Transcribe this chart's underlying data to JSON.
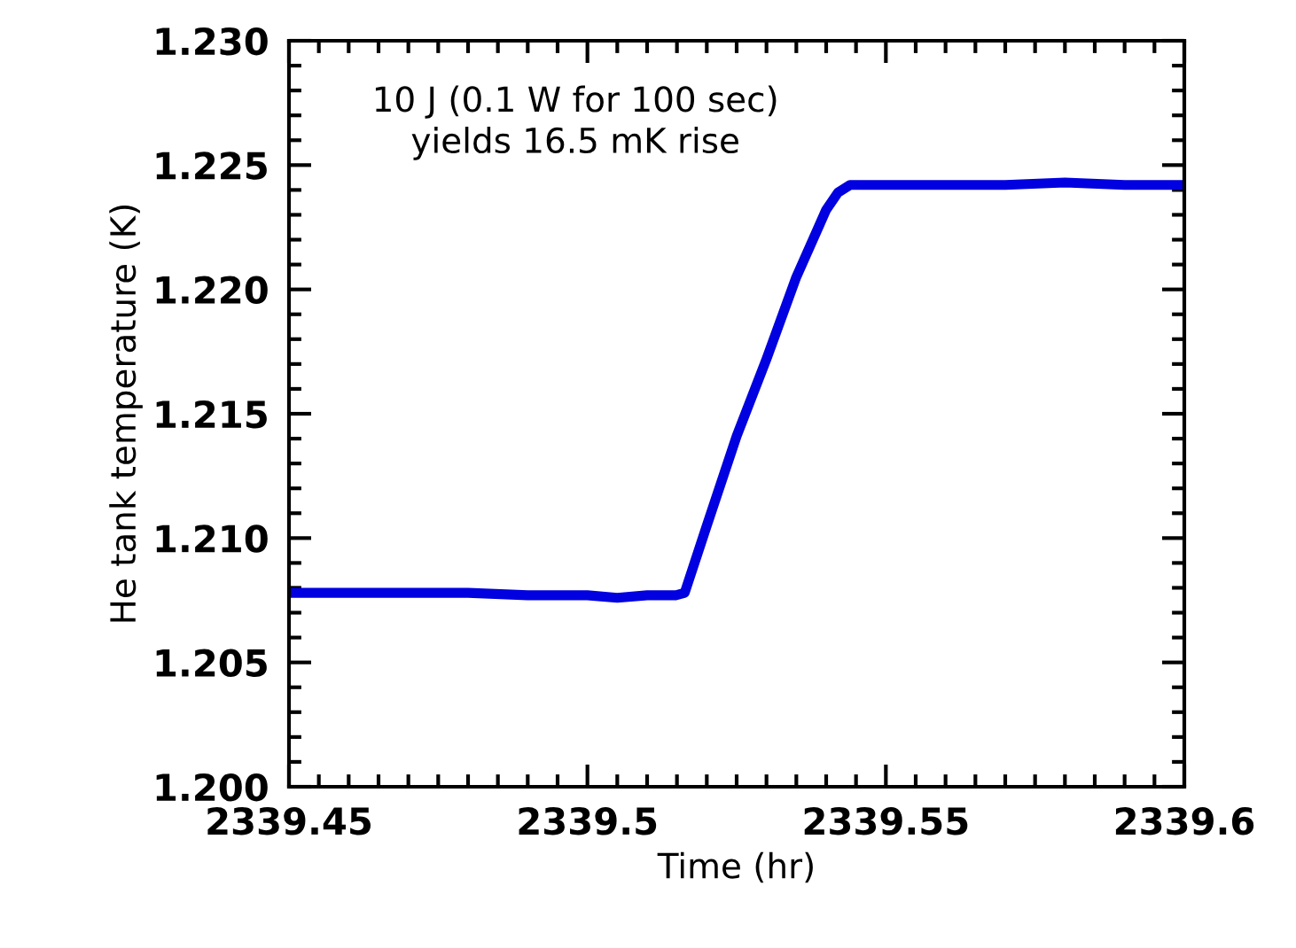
{
  "chart_data": {
    "type": "line",
    "xlabel": "Time (hr)",
    "ylabel": "He tank temperature (K)",
    "annotations": [
      "10 J (0.1 W for 100 sec)\nyields 16.5 mK rise"
    ],
    "series": [
      {
        "color": "#0000e0",
        "x": [
          2339.45,
          2339.46,
          2339.47,
          2339.48,
          2339.49,
          2339.5,
          2339.505,
          2339.51,
          2339.5148,
          2339.5163,
          2339.52,
          2339.525,
          2339.53,
          2339.535,
          2339.54,
          2339.542,
          2339.544,
          2339.55,
          2339.56,
          2339.57,
          2339.58,
          2339.59,
          2339.6
        ],
        "values": [
          1.2078,
          1.2078,
          1.2078,
          1.2078,
          1.2077,
          1.2077,
          1.2076,
          1.2077,
          1.2077,
          1.2078,
          1.2105,
          1.2141,
          1.2172,
          1.2205,
          1.2232,
          1.2239,
          1.2242,
          1.2242,
          1.2242,
          1.2242,
          1.2243,
          1.2242,
          1.2242
        ]
      }
    ],
    "xlim": [
      2339.45,
      2339.6
    ],
    "ylim": [
      1.2,
      1.23
    ],
    "xticks": [
      2339.45,
      2339.5,
      2339.55,
      2339.6
    ],
    "yticks": [
      {
        "value": 1.2,
        "label": "1.200"
      },
      {
        "value": 1.205,
        "label": "1.205"
      },
      {
        "value": 1.21,
        "label": "1.210"
      },
      {
        "value": 1.215,
        "label": "1.215"
      },
      {
        "value": 1.22,
        "label": "1.220"
      },
      {
        "value": 1.225,
        "label": "1.225"
      },
      {
        "value": 1.23,
        "label": "1.230"
      }
    ],
    "grid": false,
    "marker": "none",
    "line_style": "solid"
  }
}
